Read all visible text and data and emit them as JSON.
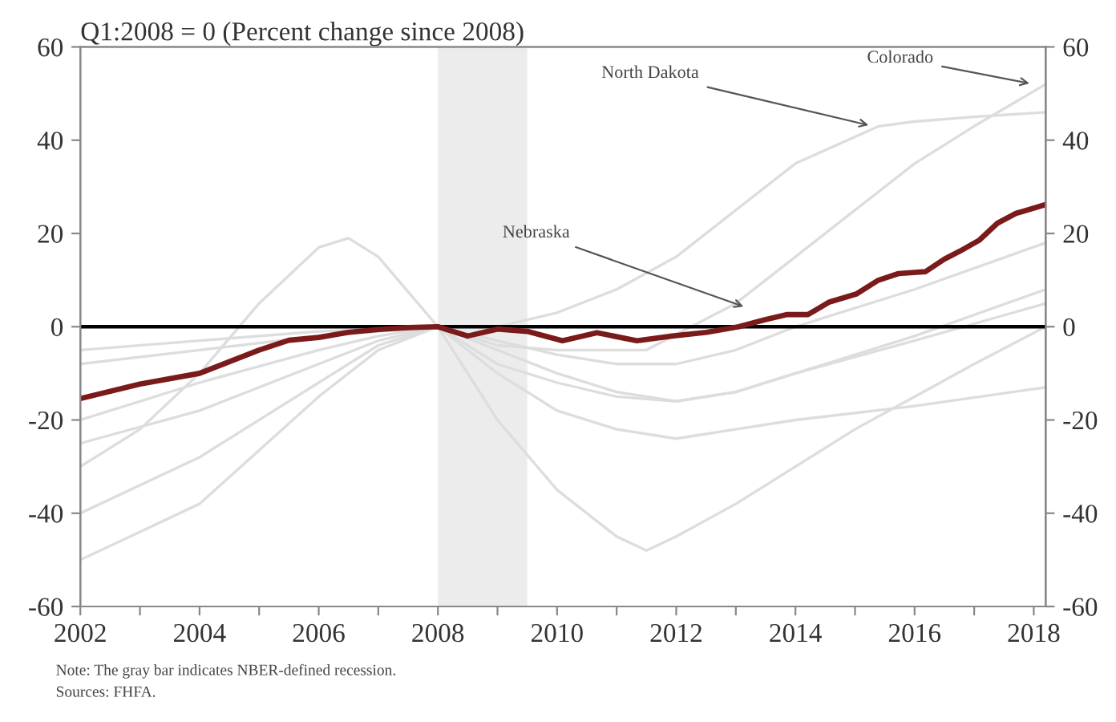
{
  "chart_data": {
    "type": "line",
    "title": "Q1:2008 = 0 (Percent change since 2008)",
    "xlim": [
      2002,
      2018.2
    ],
    "ylim": [
      -60,
      60
    ],
    "y2lim": [
      -60,
      60
    ],
    "xticks": [
      2002,
      {
        "value": 2003,
        "label": null
      },
      2004,
      {
        "value": 2005,
        "label": null
      },
      2006,
      {
        "value": 2007,
        "label": null
      },
      2008,
      {
        "value": 2009,
        "label": null
      },
      2010,
      {
        "value": 2011,
        "label": null
      },
      2012,
      {
        "value": 2013,
        "label": null
      },
      2014,
      {
        "value": 2015,
        "label": null
      },
      2016,
      {
        "value": 2017,
        "label": null
      },
      2018
    ],
    "yticks": [
      -60,
      -40,
      -20,
      0,
      20,
      40,
      60
    ],
    "y2ticks": [
      -60,
      -40,
      -20,
      0,
      20,
      40,
      60
    ],
    "grid": false,
    "legend": false,
    "bands": [
      {
        "axis": "x",
        "from": 2008,
        "to": 2009.5,
        "color": "#ececec"
      }
    ],
    "ref_lines": [
      {
        "axis": "y",
        "value": 0,
        "color": "#000000"
      }
    ],
    "series": [
      {
        "color": "#dddddd",
        "x": [
          2002,
          2004,
          2006,
          2007,
          2008,
          2009,
          2010,
          2011.5,
          2013,
          2014,
          2015,
          2016,
          2017,
          2018.2
        ],
        "values": [
          -8,
          -5,
          -2,
          -1,
          0,
          -4,
          -5,
          -5,
          5,
          15,
          25,
          35,
          43,
          52
        ]
      },
      {
        "color": "#dddddd",
        "x": [
          2002,
          2004,
          2006,
          2008,
          2009,
          2010,
          2011,
          2012,
          2013,
          2014,
          2015.4,
          2016,
          2017,
          2018.2
        ],
        "values": [
          -5,
          -3,
          -1,
          0,
          0,
          3,
          8,
          15,
          25,
          35,
          43,
          44,
          45,
          46
        ]
      },
      {
        "color": "#dddddd",
        "x": [
          2002,
          2003,
          2004,
          2005,
          2006,
          2006.5,
          2007,
          2008,
          2009,
          2010,
          2011,
          2011.5,
          2012,
          2013,
          2014,
          2015,
          2016,
          2017,
          2018.2
        ],
        "values": [
          -30,
          -22,
          -10,
          5,
          17,
          19,
          15,
          0,
          -20,
          -35,
          -45,
          -48,
          -45,
          -38,
          -30,
          -22,
          -15,
          -8,
          0
        ]
      },
      {
        "color": "#dddddd",
        "x": [
          2002,
          2004,
          2006,
          2007,
          2008,
          2009,
          2010,
          2011,
          2012,
          2013,
          2014,
          2016,
          2018.2
        ],
        "values": [
          -50,
          -38,
          -15,
          -5,
          0,
          -8,
          -12,
          -15,
          -16,
          -14,
          -10,
          -3,
          5
        ]
      },
      {
        "color": "#dddddd",
        "x": [
          2002,
          2004,
          2006,
          2007,
          2008,
          2009,
          2010,
          2011,
          2012,
          2013,
          2014,
          2016,
          2018.2
        ],
        "values": [
          -25,
          -18,
          -8,
          -3,
          0,
          -5,
          -10,
          -14,
          -16,
          -14,
          -10,
          -2,
          8
        ]
      },
      {
        "color": "#dddddd",
        "x": [
          2002,
          2004,
          2006,
          2007,
          2008,
          2009,
          2010,
          2011,
          2012,
          2013,
          2014,
          2016,
          2018.2
        ],
        "values": [
          -40,
          -28,
          -12,
          -4,
          0,
          -10,
          -18,
          -22,
          -24,
          -22,
          -20,
          -17,
          -13
        ]
      },
      {
        "color": "#dddddd",
        "x": [
          2002,
          2004,
          2006,
          2007,
          2008,
          2009,
          2010,
          2011,
          2012,
          2013,
          2014,
          2016,
          2018.2
        ],
        "values": [
          -20,
          -12,
          -5,
          -2,
          0,
          -3,
          -6,
          -8,
          -8,
          -5,
          0,
          8,
          18
        ]
      },
      {
        "color": "#7a1a1a",
        "x": [
          2002,
          2003,
          2004,
          2005,
          2005.5,
          2006,
          2006.5,
          2007,
          2007.5,
          2008,
          2008.5,
          2009,
          2009.5,
          2010.09,
          2010.67,
          2011.34,
          2011.93,
          2012.51,
          2013.05,
          2013.49,
          2013.85,
          2014.21,
          2014.57,
          2015.02,
          2015.38,
          2015.73,
          2016.18,
          2016.5,
          2016.76,
          2017.08,
          2017.39,
          2017.7,
          2018.2
        ],
        "values": [
          -15.4,
          -12.3,
          -10,
          -5,
          -2.9,
          -2.3,
          -1.2,
          -0.6,
          -0.2,
          0,
          -2,
          -0.5,
          -1,
          -3,
          -1.3,
          -3,
          -2,
          -1.2,
          0,
          1.5,
          2.6,
          2.6,
          5.3,
          7,
          9.9,
          11.4,
          11.8,
          14.5,
          16.2,
          18.5,
          22.2,
          24.3,
          26.2
        ]
      }
    ],
    "annotations": [
      {
        "text": "Nebraska",
        "x": 2013.2,
        "y": 4
      },
      {
        "text": "North Dakota",
        "x": 2015.3,
        "y": 43
      },
      {
        "text": "Colorado",
        "x": 2018,
        "y": 52
      },
      "Note: The gray bar indicates NBER-defined recession.",
      "Sources: FHFA."
    ]
  }
}
